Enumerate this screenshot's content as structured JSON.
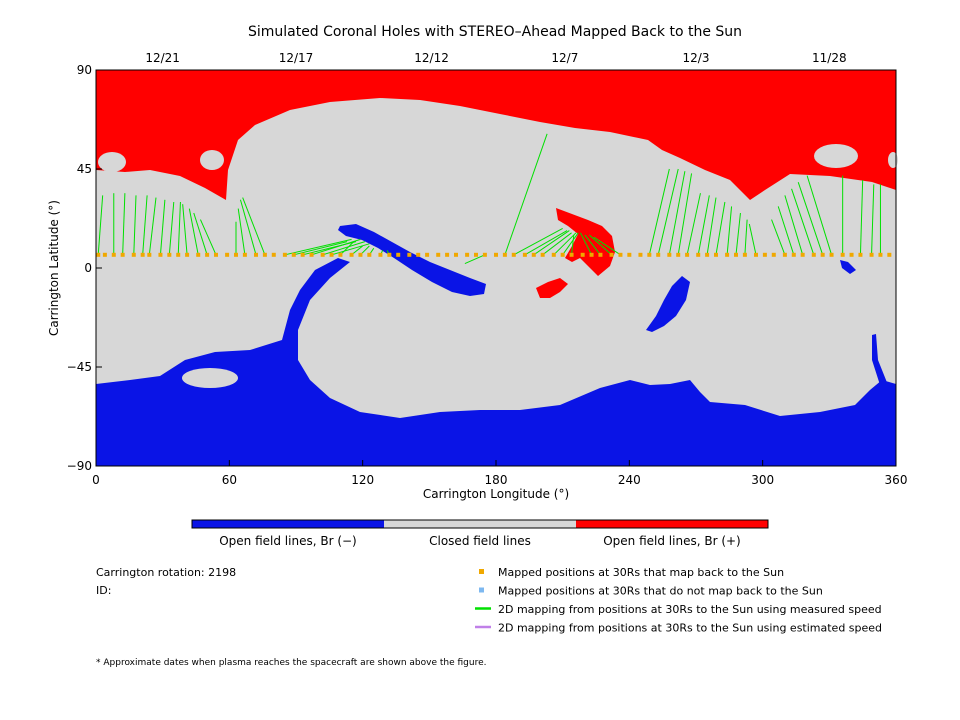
{
  "chart_data": {
    "type": "heatmap",
    "title": "Simulated Coronal Holes with STEREO–Ahead Mapped Back to the Sun",
    "xlabel": "Carrington Longitude (°)",
    "ylabel": "Carrington Latitude (°)",
    "xlim": [
      0,
      360
    ],
    "ylim": [
      -90,
      90
    ],
    "x_ticks": [
      0,
      60,
      120,
      180,
      240,
      300,
      360
    ],
    "y_ticks": [
      90,
      45,
      0,
      -45,
      -90
    ],
    "y_tick_labels": [
      "90",
      "45",
      "0",
      "−45",
      "−90"
    ],
    "top_dates": [
      {
        "label": "12/21",
        "lon": 30
      },
      {
        "label": "12/17",
        "lon": 90
      },
      {
        "label": "12/12",
        "lon": 151
      },
      {
        "label": "12/7",
        "lon": 211
      },
      {
        "label": "12/3",
        "lon": 270
      },
      {
        "label": "11/28",
        "lon": 330
      }
    ],
    "colorbar": [
      {
        "label": "Open field lines, Br (−)",
        "color": "#0a14e6"
      },
      {
        "label": "Closed field lines",
        "color": "#d7d7d7"
      },
      {
        "label": "Open field lines, Br (+)",
        "color": "#ff0000"
      }
    ],
    "mapped_points": {
      "lat": 6,
      "lon": [
        1,
        4,
        8,
        12,
        17,
        21,
        24,
        29,
        33,
        37,
        41,
        46,
        50,
        54,
        59,
        63,
        67,
        72,
        76,
        80,
        85,
        89,
        93,
        97,
        102,
        106,
        110,
        115,
        119,
        123,
        128,
        132,
        136,
        141,
        145,
        149,
        154,
        158,
        162,
        167,
        171,
        175,
        180,
        184,
        188,
        193,
        197,
        201,
        206,
        210,
        214,
        219,
        223,
        227,
        232,
        236,
        240,
        245,
        249,
        253,
        258,
        262,
        266,
        271,
        275,
        279,
        284,
        288,
        292,
        297,
        301,
        305,
        310,
        314,
        318,
        323,
        327,
        331,
        336,
        340,
        344,
        349,
        353,
        357
      ]
    },
    "green_lines": [
      {
        "from": [
          1,
          6
        ],
        "to": [
          3,
          33
        ]
      },
      {
        "from": [
          8,
          6
        ],
        "to": [
          8,
          34
        ]
      },
      {
        "from": [
          12,
          6
        ],
        "to": [
          13,
          34
        ]
      },
      {
        "from": [
          17,
          6
        ],
        "to": [
          18,
          33
        ]
      },
      {
        "from": [
          21,
          6
        ],
        "to": [
          23,
          33
        ]
      },
      {
        "from": [
          24,
          6
        ],
        "to": [
          27,
          32
        ]
      },
      {
        "from": [
          29,
          6
        ],
        "to": [
          31,
          31
        ]
      },
      {
        "from": [
          33,
          6
        ],
        "to": [
          35,
          30
        ]
      },
      {
        "from": [
          37,
          6
        ],
        "to": [
          38,
          30
        ]
      },
      {
        "from": [
          41,
          6
        ],
        "to": [
          39,
          29
        ]
      },
      {
        "from": [
          46,
          6
        ],
        "to": [
          42,
          27
        ]
      },
      {
        "from": [
          50,
          6
        ],
        "to": [
          44,
          25
        ]
      },
      {
        "from": [
          54,
          6
        ],
        "to": [
          47,
          22
        ]
      },
      {
        "from": [
          63,
          6
        ],
        "to": [
          63,
          21
        ]
      },
      {
        "from": [
          67,
          6
        ],
        "to": [
          64,
          27
        ]
      },
      {
        "from": [
          72,
          6
        ],
        "to": [
          65,
          31
        ]
      },
      {
        "from": [
          76,
          6
        ],
        "to": [
          66,
          32
        ]
      },
      {
        "from": [
          85,
          6
        ],
        "to": [
          115,
          13
        ]
      },
      {
        "from": [
          89,
          6
        ],
        "to": [
          113,
          12
        ]
      },
      {
        "from": [
          93,
          6
        ],
        "to": [
          117,
          12
        ]
      },
      {
        "from": [
          97,
          6
        ],
        "to": [
          119,
          13
        ]
      },
      {
        "from": [
          102,
          6
        ],
        "to": [
          121,
          12
        ]
      },
      {
        "from": [
          106,
          6
        ],
        "to": [
          123,
          11
        ]
      },
      {
        "from": [
          110,
          6
        ],
        "to": [
          116,
          12
        ]
      },
      {
        "from": [
          115,
          6
        ],
        "to": [
          120,
          10
        ]
      },
      {
        "from": [
          119,
          6
        ],
        "to": [
          123,
          10
        ]
      },
      {
        "from": [
          123,
          6
        ],
        "to": [
          125,
          9
        ]
      },
      {
        "from": [
          128,
          6
        ],
        "to": [
          129,
          8
        ]
      },
      {
        "from": [
          132,
          6
        ],
        "to": [
          131,
          8
        ]
      },
      {
        "from": [
          175,
          6
        ],
        "to": [
          166,
          2
        ]
      },
      {
        "from": [
          184,
          6
        ],
        "to": [
          203,
          61
        ]
      },
      {
        "from": [
          188,
          6
        ],
        "to": [
          210,
          18
        ]
      },
      {
        "from": [
          193,
          6
        ],
        "to": [
          212,
          17
        ]
      },
      {
        "from": [
          197,
          6
        ],
        "to": [
          213,
          17
        ]
      },
      {
        "from": [
          201,
          6
        ],
        "to": [
          214,
          16
        ]
      },
      {
        "from": [
          206,
          6
        ],
        "to": [
          216,
          16
        ]
      },
      {
        "from": [
          210,
          6
        ],
        "to": [
          217,
          16
        ]
      },
      {
        "from": [
          214,
          6
        ],
        "to": [
          215,
          15
        ]
      },
      {
        "from": [
          223,
          6
        ],
        "to": [
          218,
          16
        ]
      },
      {
        "from": [
          227,
          6
        ],
        "to": [
          220,
          15
        ]
      },
      {
        "from": [
          232,
          6
        ],
        "to": [
          222,
          15
        ]
      },
      {
        "from": [
          236,
          6
        ],
        "to": [
          224,
          14
        ]
      },
      {
        "from": [
          249,
          6
        ],
        "to": [
          258,
          45
        ]
      },
      {
        "from": [
          253,
          6
        ],
        "to": [
          262,
          45
        ]
      },
      {
        "from": [
          258,
          6
        ],
        "to": [
          265,
          44
        ]
      },
      {
        "from": [
          262,
          6
        ],
        "to": [
          268,
          43
        ]
      },
      {
        "from": [
          266,
          6
        ],
        "to": [
          272,
          34
        ]
      },
      {
        "from": [
          271,
          6
        ],
        "to": [
          276,
          33
        ]
      },
      {
        "from": [
          275,
          6
        ],
        "to": [
          279,
          32
        ]
      },
      {
        "from": [
          279,
          6
        ],
        "to": [
          283,
          30
        ]
      },
      {
        "from": [
          284,
          6
        ],
        "to": [
          286,
          28
        ]
      },
      {
        "from": [
          288,
          6
        ],
        "to": [
          290,
          25
        ]
      },
      {
        "from": [
          292,
          6
        ],
        "to": [
          293,
          22
        ]
      },
      {
        "from": [
          297,
          6
        ],
        "to": [
          294,
          20
        ]
      },
      {
        "from": [
          310,
          6
        ],
        "to": [
          304,
          22
        ]
      },
      {
        "from": [
          314,
          6
        ],
        "to": [
          307,
          28
        ]
      },
      {
        "from": [
          318,
          6
        ],
        "to": [
          310,
          33
        ]
      },
      {
        "from": [
          323,
          6
        ],
        "to": [
          313,
          36
        ]
      },
      {
        "from": [
          327,
          6
        ],
        "to": [
          316,
          39
        ]
      },
      {
        "from": [
          331,
          6
        ],
        "to": [
          320,
          42
        ]
      },
      {
        "from": [
          336,
          6
        ],
        "to": [
          336,
          42
        ]
      },
      {
        "from": [
          344,
          6
        ],
        "to": [
          345,
          40
        ]
      },
      {
        "from": [
          349,
          6
        ],
        "to": [
          350,
          38
        ]
      },
      {
        "from": [
          353,
          6
        ],
        "to": [
          353,
          38
        ]
      }
    ]
  },
  "info": {
    "carrington_rotation": "Carrington rotation: 2198",
    "id": "ID:"
  },
  "legend": [
    {
      "label": "Mapped positions at 30Rs that map back to the Sun",
      "color": "#f0a800",
      "kind": "square"
    },
    {
      "label": "Mapped positions at 30Rs that do not map back to the Sun",
      "color": "#7db8f0",
      "kind": "square"
    },
    {
      "label": "2D mapping from positions at 30Rs to the Sun using measured speed",
      "color": "#00e000",
      "kind": "line"
    },
    {
      "label": "2D mapping from positions at 30Rs to the Sun using estimated speed",
      "color": "#c080e8",
      "kind": "line"
    }
  ],
  "footnote": "* Approximate dates when plasma reaches the spacecraft are shown above the figure.",
  "colors": {
    "closed": "#d7d7d7",
    "open_neg": "#0a14e6",
    "open_pos": "#ff0000",
    "mapped_point": "#f0a800",
    "mapping_line": "#00e000"
  }
}
